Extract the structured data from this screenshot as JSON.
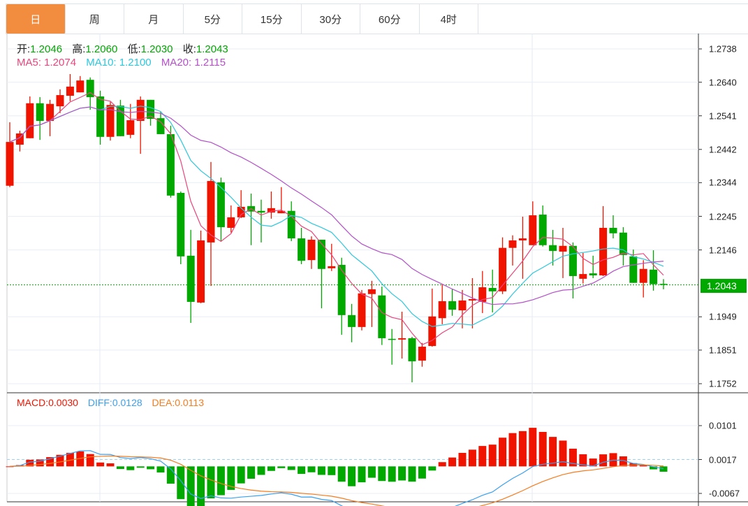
{
  "tabs": [
    "日",
    "周",
    "月",
    "5分",
    "15分",
    "30分",
    "60分",
    "4时"
  ],
  "active_tab": 0,
  "ohlc": {
    "open_label": "开:",
    "open": "1.2046",
    "high_label": "高:",
    "high": "1.2060",
    "low_label": "低:",
    "low": "1.2030",
    "close_label": "收:",
    "close": "1.2043"
  },
  "ma": {
    "ma5": "MA5: 1.2074",
    "ma10": "MA10: 1.2100",
    "ma20": "MA20: 1.2115"
  },
  "macd": {
    "macd": "MACD:0.0030",
    "diff": "DIFF:0.0128",
    "dea": "DEA:0.0113"
  },
  "current_price": "1.2043",
  "colors": {
    "up": "#f01400",
    "down": "#00a800",
    "ma5": "#e8467c",
    "ma10": "#2ec7dc",
    "ma20": "#b251c8",
    "diff": "#3aa0f0",
    "dea": "#f57c1f",
    "accent": "#f28c3e"
  },
  "chart_data": {
    "type": "candlestick",
    "price_ticks": [
      "1.2738",
      "1.2640",
      "1.2541",
      "1.2442",
      "1.2344",
      "1.2245",
      "1.2146",
      "1.1949",
      "1.1851",
      "1.1752"
    ],
    "macd_ticks": [
      "0.0101",
      "0.0017",
      "-0.0067"
    ],
    "ylim": [
      1.1752,
      1.2738
    ],
    "macd_ylim": [
      -0.0067,
      0.0101
    ],
    "candles_ohlc": [
      [
        1.2335,
        1.2522,
        1.2331,
        1.2464
      ],
      [
        1.2456,
        1.2497,
        1.2436,
        1.2489
      ],
      [
        1.2475,
        1.2598,
        1.2475,
        1.2578
      ],
      [
        1.2578,
        1.2596,
        1.247,
        1.2526
      ],
      [
        1.2526,
        1.2588,
        1.2481,
        1.2576
      ],
      [
        1.2569,
        1.2619,
        1.2549,
        1.2602
      ],
      [
        1.26,
        1.2664,
        1.2584,
        1.2627
      ],
      [
        1.261,
        1.2658,
        1.261,
        1.2645
      ],
      [
        1.2647,
        1.2654,
        1.2559,
        1.2596
      ],
      [
        1.2598,
        1.2615,
        1.2456,
        1.2479
      ],
      [
        1.2479,
        1.2582,
        1.2468,
        1.2573
      ],
      [
        1.2571,
        1.2588,
        1.2481,
        1.2481
      ],
      [
        1.2485,
        1.2576,
        1.2475,
        1.2528
      ],
      [
        1.2526,
        1.2598,
        1.2429,
        1.2588
      ],
      [
        1.2588,
        1.2588,
        1.2512,
        1.2532
      ],
      [
        1.2534,
        1.2553,
        1.2487,
        1.2487
      ],
      [
        1.2487,
        1.2512,
        1.23,
        1.2306
      ],
      [
        1.2314,
        1.2318,
        1.2104,
        1.2127
      ],
      [
        1.2129,
        1.2205,
        1.1931,
        1.1993
      ],
      [
        1.1991,
        1.2203,
        1.1989,
        1.2174
      ],
      [
        1.2168,
        1.2405,
        1.204,
        1.2349
      ],
      [
        1.2345,
        1.2359,
        1.2172,
        1.2213
      ],
      [
        1.2211,
        1.2277,
        1.2197,
        1.2242
      ],
      [
        1.2242,
        1.2322,
        1.224,
        1.2273
      ],
      [
        1.2275,
        1.2312,
        1.216,
        1.2259
      ],
      [
        1.2261,
        1.2294,
        1.2168,
        1.2256
      ],
      [
        1.2256,
        1.2318,
        1.2238,
        1.2269
      ],
      [
        1.2254,
        1.2331,
        1.2254,
        1.2261
      ],
      [
        1.2261,
        1.2289,
        1.2172,
        1.218
      ],
      [
        1.218,
        1.2211,
        1.2104,
        1.2114
      ],
      [
        1.2116,
        1.2186,
        1.209,
        1.2176
      ],
      [
        1.2176,
        1.2176,
        1.1974,
        1.209
      ],
      [
        1.2092,
        1.2164,
        1.2084,
        1.2098
      ],
      [
        1.2102,
        1.2123,
        1.1896,
        1.1954
      ],
      [
        1.1954,
        1.1987,
        1.1874,
        1.1919
      ],
      [
        1.1919,
        1.2028,
        1.1909,
        1.2018
      ],
      [
        1.2016,
        1.2055,
        1.1919,
        1.203
      ],
      [
        1.2012,
        1.2038,
        1.1866,
        1.1886
      ],
      [
        1.1884,
        1.1913,
        1.1808,
        1.1883
      ],
      [
        1.1882,
        1.1964,
        1.1826,
        1.1886
      ],
      [
        1.1886,
        1.189,
        1.1756,
        1.1818
      ],
      [
        1.182,
        1.1872,
        1.1802,
        1.1861
      ],
      [
        1.1863,
        1.2032,
        1.1861,
        1.195
      ],
      [
        1.1945,
        1.2044,
        1.1927,
        1.1995
      ],
      [
        1.1995,
        1.2032,
        1.1952,
        1.197
      ],
      [
        1.1968,
        1.2028,
        1.1915,
        1.1997
      ],
      [
        1.1997,
        1.2063,
        1.1915,
        1.2001
      ],
      [
        1.1993,
        1.2084,
        1.196,
        1.2036
      ],
      [
        1.2034,
        1.2088,
        1.1962,
        1.2024
      ],
      [
        1.2024,
        1.2183,
        1.2016,
        1.2152
      ],
      [
        1.2152,
        1.2189,
        1.21,
        1.2174
      ],
      [
        1.2174,
        1.2244,
        1.2061,
        1.218
      ],
      [
        1.216,
        1.2289,
        1.216,
        1.2248
      ],
      [
        1.225,
        1.2277,
        1.2156,
        1.216
      ],
      [
        1.216,
        1.2205,
        1.21,
        1.2143
      ],
      [
        1.2141,
        1.2211,
        1.2063,
        1.2158
      ],
      [
        1.2158,
        1.2168,
        1.2003,
        1.2069
      ],
      [
        1.2061,
        1.2137,
        1.2047,
        1.2075
      ],
      [
        1.2077,
        1.2129,
        1.2063,
        1.2071
      ],
      [
        1.2071,
        1.2275,
        1.2069,
        1.2211
      ],
      [
        1.2211,
        1.2248,
        1.218,
        1.2195
      ],
      [
        1.2197,
        1.2213,
        1.21,
        1.2131
      ],
      [
        1.2127,
        1.2147,
        1.2049,
        1.2049
      ],
      [
        1.2049,
        1.2116,
        1.2006,
        1.209
      ],
      [
        1.2088,
        1.2145,
        1.2026,
        1.2045
      ],
      [
        1.2046,
        1.206,
        1.203,
        1.2043
      ]
    ]
  }
}
